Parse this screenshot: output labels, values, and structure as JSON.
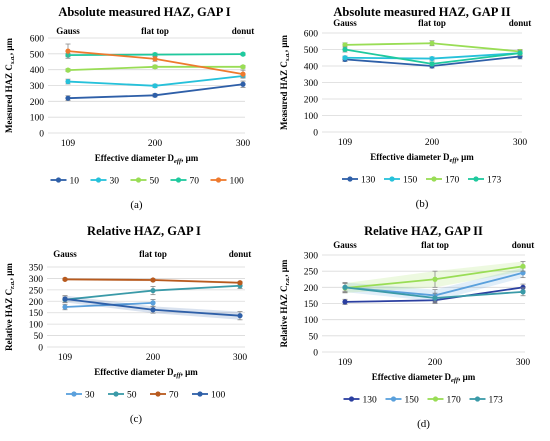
{
  "figure": {
    "panels": [
      "a",
      "b",
      "c",
      "d"
    ]
  },
  "chart_data": [
    {
      "id": "a",
      "type": "line",
      "title": "Absolute measured HAZ, GAP I",
      "panel_label": "(a)",
      "ylabel": "Measured HAZ C",
      "ylabel_sub": "s.a.",
      "ylabel_unit": ", μm",
      "xlabel": "Effective diameter D",
      "xlabel_sub": "eff",
      "xlabel_unit": ", μm",
      "x": [
        "109",
        "200",
        "300"
      ],
      "top_labels": [
        "Gauss",
        "flat top",
        "donut"
      ],
      "ylim": [
        0,
        600
      ],
      "yticks": [
        0,
        100,
        200,
        300,
        400,
        500,
        600
      ],
      "grid": true,
      "legend_position": "bottom",
      "series": [
        {
          "name": "10",
          "values": [
            220,
            238,
            308
          ],
          "color": "#2e5fa8",
          "err": [
            15,
            10,
            20
          ],
          "band": false
        },
        {
          "name": "30",
          "values": [
            325,
            298,
            360
          ],
          "color": "#26c1da",
          "err": [
            15,
            10,
            10
          ],
          "band": false
        },
        {
          "name": "50",
          "values": [
            397,
            418,
            418
          ],
          "color": "#99dd55",
          "err": [
            8,
            10,
            8
          ],
          "band": false
        },
        {
          "name": "70",
          "values": [
            492,
            495,
            498
          ],
          "color": "#1fc99e",
          "err": [
            10,
            10,
            8
          ],
          "band": false
        },
        {
          "name": "100",
          "values": [
            517,
            468,
            372
          ],
          "color": "#ee7a2e",
          "err": [
            45,
            15,
            25
          ],
          "band": false
        }
      ]
    },
    {
      "id": "b",
      "type": "line",
      "title": "Absolute measured HAZ, GAP II",
      "panel_label": "(b)",
      "ylabel": "Measured HAZ C",
      "ylabel_sub": "s.a.",
      "ylabel_unit": ", μm",
      "xlabel": "Effective diameter D",
      "xlabel_sub": "eff",
      "xlabel_unit": ", μm",
      "x": [
        "109",
        "200",
        "300"
      ],
      "top_labels": [
        "Gauss",
        "flat top",
        "donut"
      ],
      "ylim": [
        0,
        600
      ],
      "yticks": [
        0,
        100,
        200,
        300,
        400,
        500,
        600
      ],
      "grid": true,
      "legend_position": "bottom",
      "series": [
        {
          "name": "130",
          "values": [
            440,
            400,
            458
          ],
          "color": "#2e5fa8",
          "err": [
            12,
            12,
            15
          ],
          "band": false
        },
        {
          "name": "150",
          "values": [
            450,
            445,
            478
          ],
          "color": "#26c1da",
          "err": [
            10,
            10,
            12
          ],
          "band": false
        },
        {
          "name": "170",
          "values": [
            528,
            538,
            488
          ],
          "color": "#99dd55",
          "err": [
            12,
            15,
            12
          ],
          "band": false
        },
        {
          "name": "173",
          "values": [
            500,
            413,
            478
          ],
          "color": "#1fc99e",
          "err": [
            15,
            12,
            15
          ],
          "band": false
        }
      ]
    },
    {
      "id": "c",
      "type": "line",
      "title": "Relative HAZ, GAP I",
      "panel_label": "(c)",
      "ylabel": "Relative HAZ C",
      "ylabel_sub": "r.a.",
      "ylabel_unit": ", μm",
      "xlabel": "Effective diameter D",
      "xlabel_sub": "eff",
      "xlabel_unit": ", μm",
      "x": [
        "109",
        "200",
        "300"
      ],
      "top_labels": [
        "Gauss",
        "flat top",
        "donut"
      ],
      "ylim": [
        0,
        350
      ],
      "yticks": [
        0,
        50,
        100,
        150,
        200,
        250,
        300,
        350
      ],
      "grid": true,
      "legend_position": "bottom",
      "series": [
        {
          "name": "30",
          "values": [
            175,
            193,
            null
          ],
          "color": "#5aa0dc",
          "err": [
            12,
            15,
            0
          ],
          "band": false
        },
        {
          "name": "50",
          "values": [
            207,
            247,
            268
          ],
          "color": "#3a9aa8",
          "err": [
            12,
            18,
            12
          ],
          "band": false
        },
        {
          "name": "70",
          "values": [
            296,
            293,
            281
          ],
          "color": "#b85a1e",
          "err": [
            5,
            5,
            5
          ],
          "band": true
        },
        {
          "name": "100",
          "values": [
            210,
            163,
            137
          ],
          "color": "#2e5fa8",
          "err": [
            15,
            15,
            18
          ],
          "band": true
        }
      ]
    },
    {
      "id": "d",
      "type": "line",
      "title": "Relative HAZ, GAP II",
      "panel_label": "(d)",
      "ylabel": "Relative HAZ C",
      "ylabel_sub": "r.a.",
      "ylabel_unit": ", μm",
      "xlabel": "Effective diameter D",
      "xlabel_sub": "eff",
      "xlabel_unit": ", μm",
      "x": [
        "109",
        "200",
        "300"
      ],
      "top_labels": [
        "Gauss",
        "flat top",
        "donut"
      ],
      "ylim": [
        0,
        300
      ],
      "yticks": [
        0,
        50,
        100,
        150,
        200,
        250,
        300
      ],
      "grid": true,
      "legend_position": "bottom",
      "series": [
        {
          "name": "130",
          "values": [
            155,
            160,
            200
          ],
          "color": "#2b3fa0",
          "err": [
            8,
            10,
            10
          ],
          "band": false
        },
        {
          "name": "150",
          "values": [
            200,
            175,
            245
          ],
          "color": "#5aa0dc",
          "err": [
            15,
            18,
            15
          ],
          "band": true
        },
        {
          "name": "170",
          "values": [
            198,
            225,
            265
          ],
          "color": "#99dd55",
          "err": [
            15,
            25,
            15
          ],
          "band": true
        },
        {
          "name": "173",
          "values": [
            200,
            167,
            186
          ],
          "color": "#3a9aa8",
          "err": [
            12,
            15,
            12
          ],
          "band": false
        }
      ]
    }
  ]
}
